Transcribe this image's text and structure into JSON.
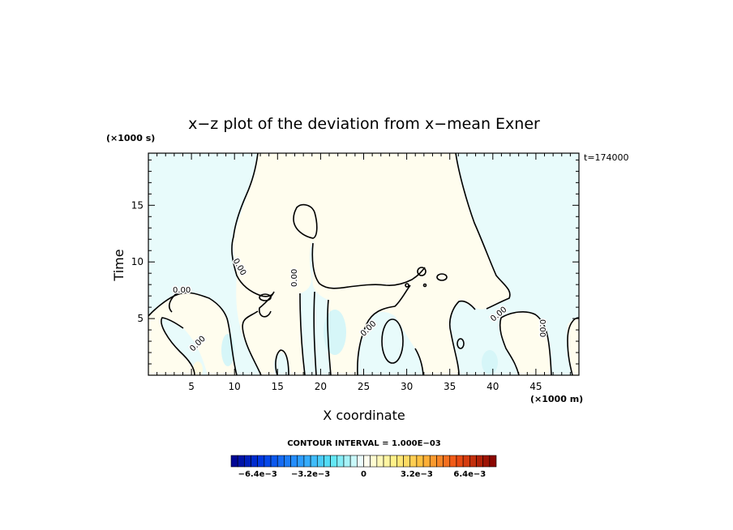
{
  "chart_data": {
    "type": "heatmap",
    "title": "x−z plot of the deviation from x−mean Exner",
    "xlabel": "X coordinate",
    "ylabel": "Time",
    "x_scale_label": "(×1000 m)",
    "y_scale_label": "(×1000 s)",
    "time_label": "t=174000",
    "xlim": [
      0,
      50
    ],
    "ylim": [
      0,
      19.6
    ],
    "x_ticks": [
      5,
      10,
      15,
      20,
      25,
      30,
      35,
      40,
      45
    ],
    "x_tick_labels": [
      "5",
      "10",
      "15",
      "20",
      "25",
      "30",
      "35",
      "40",
      "45"
    ],
    "y_ticks": [
      5,
      10,
      15
    ],
    "y_tick_labels": [
      "5",
      "10",
      "15"
    ],
    "contour_interval_text": "CONTOUR INTERVAL = 1.000E−03",
    "contour_label_text": "0.00",
    "colorbar": {
      "levels": 40,
      "min": -0.008,
      "max": 0.008,
      "tick_values": [
        -0.0064,
        -0.0032,
        0,
        0.0032,
        0.0064
      ],
      "tick_labels": [
        "−6.4e−3",
        "−3.2e−3",
        "0",
        "3.2e−3",
        "6.4e−3"
      ]
    },
    "colors": {
      "negative_fill": "#e8fbfb",
      "positive_fill": "#fffdee",
      "strong_negative_fill": "#d6f6f8",
      "weak_positive_fill": "#fffbe0"
    }
  }
}
